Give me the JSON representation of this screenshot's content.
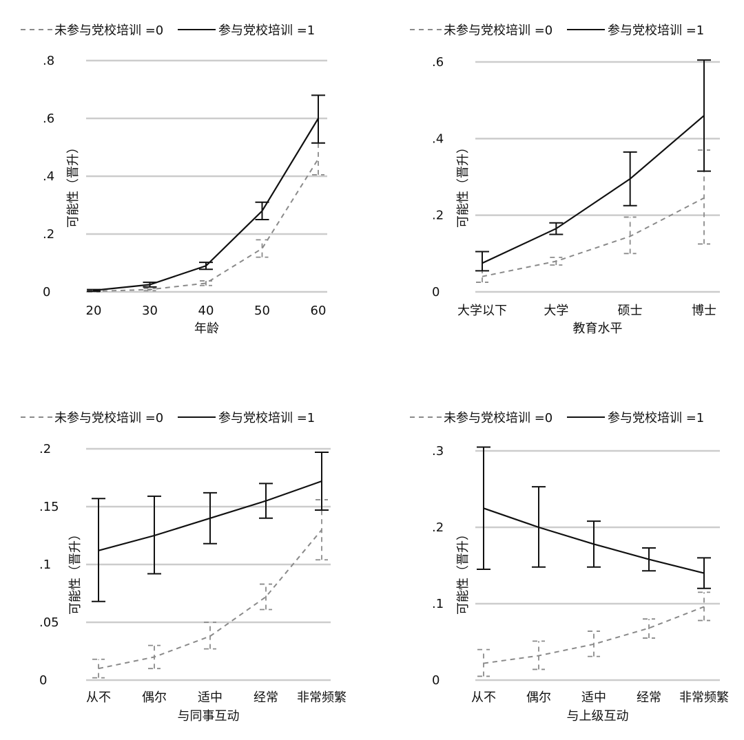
{
  "legend": {
    "untrained_label": "未参与党校培训 =0",
    "trained_label": "参与党校培训 =1"
  },
  "colors": {
    "trained": "#111111",
    "untrained": "#8a8a8a",
    "grid": "#cccccc",
    "text": "#111111"
  },
  "chart_data": [
    {
      "type": "line",
      "title": "",
      "xlabel": "年龄",
      "ylabel": "可能性（晋升）",
      "categories": [
        "20",
        "30",
        "40",
        "50",
        "60"
      ],
      "ylim": [
        0,
        0.8
      ],
      "yticks": [
        0,
        0.2,
        0.4,
        0.6,
        0.8
      ],
      "ytick_labels": [
        "0",
        ".2",
        ".4",
        ".6",
        ".8"
      ],
      "grid": true,
      "legend_position": "top",
      "series": [
        {
          "name": "未参与党校培训 =0",
          "values": [
            0.002,
            0.008,
            0.03,
            0.15,
            0.46
          ],
          "ci_low": [
            0.0,
            0.004,
            0.022,
            0.12,
            0.405
          ],
          "ci_high": [
            0.004,
            0.012,
            0.038,
            0.18,
            0.515
          ]
        },
        {
          "name": "参与党校培训 =1",
          "values": [
            0.005,
            0.025,
            0.09,
            0.28,
            0.6
          ],
          "ci_low": [
            0.002,
            0.017,
            0.078,
            0.25,
            0.515
          ],
          "ci_high": [
            0.008,
            0.033,
            0.102,
            0.31,
            0.68
          ]
        }
      ]
    },
    {
      "type": "line",
      "title": "",
      "xlabel": "教育水平",
      "ylabel": "可能性（晋升）",
      "categories": [
        "大学以下",
        "大学",
        "硕士",
        "博士"
      ],
      "ylim": [
        0,
        0.6
      ],
      "yticks": [
        0,
        0.2,
        0.4,
        0.6
      ],
      "ytick_labels": [
        "0",
        ".2",
        ".4",
        ".6"
      ],
      "grid": true,
      "legend_position": "top",
      "series": [
        {
          "name": "未参与党校培训 =0",
          "values": [
            0.04,
            0.08,
            0.145,
            0.245
          ],
          "ci_low": [
            0.025,
            0.07,
            0.1,
            0.125
          ],
          "ci_high": [
            0.055,
            0.09,
            0.195,
            0.37
          ]
        },
        {
          "name": "参与党校培训 =1",
          "values": [
            0.075,
            0.165,
            0.295,
            0.46
          ],
          "ci_low": [
            0.055,
            0.15,
            0.225,
            0.315
          ],
          "ci_high": [
            0.105,
            0.18,
            0.365,
            0.605
          ]
        }
      ]
    },
    {
      "type": "line",
      "title": "",
      "xlabel": "与同事互动",
      "ylabel": "可能性（晋升）",
      "categories": [
        "从不",
        "偶尔",
        "适中",
        "经常",
        "非常频繁"
      ],
      "ylim": [
        0,
        0.2
      ],
      "yticks": [
        0,
        0.05,
        0.1,
        0.15,
        0.2
      ],
      "ytick_labels": [
        "0",
        ".05",
        ".1",
        ".15",
        ".2"
      ],
      "grid": true,
      "legend_position": "top",
      "series": [
        {
          "name": "未参与党校培训 =0",
          "values": [
            0.01,
            0.02,
            0.038,
            0.072,
            0.13
          ],
          "ci_low": [
            0.002,
            0.01,
            0.027,
            0.061,
            0.104
          ],
          "ci_high": [
            0.018,
            0.03,
            0.05,
            0.083,
            0.156
          ]
        },
        {
          "name": "参与党校培训 =1",
          "values": [
            0.112,
            0.125,
            0.14,
            0.155,
            0.172
          ],
          "ci_low": [
            0.068,
            0.092,
            0.118,
            0.14,
            0.147
          ],
          "ci_high": [
            0.157,
            0.159,
            0.162,
            0.17,
            0.197
          ]
        }
      ]
    },
    {
      "type": "line",
      "title": "",
      "xlabel": "与上级互动",
      "ylabel": "可能性（晋升）",
      "categories": [
        "从不",
        "偶尔",
        "适中",
        "经常",
        "非常频繁"
      ],
      "ylim": [
        0,
        0.3
      ],
      "yticks": [
        0,
        0.1,
        0.2,
        0.3
      ],
      "ytick_labels": [
        "0",
        ".1",
        ".2",
        ".3"
      ],
      "grid": true,
      "legend_position": "top",
      "series": [
        {
          "name": "未参与党校培训 =0",
          "values": [
            0.022,
            0.032,
            0.047,
            0.068,
            0.096
          ],
          "ci_low": [
            0.005,
            0.014,
            0.031,
            0.055,
            0.078
          ],
          "ci_high": [
            0.04,
            0.051,
            0.064,
            0.08,
            0.115
          ]
        },
        {
          "name": "参与党校培训 =1",
          "values": [
            0.225,
            0.2,
            0.178,
            0.158,
            0.14
          ],
          "ci_low": [
            0.145,
            0.148,
            0.148,
            0.143,
            0.12
          ],
          "ci_high": [
            0.305,
            0.253,
            0.208,
            0.173,
            0.16
          ]
        }
      ]
    }
  ]
}
